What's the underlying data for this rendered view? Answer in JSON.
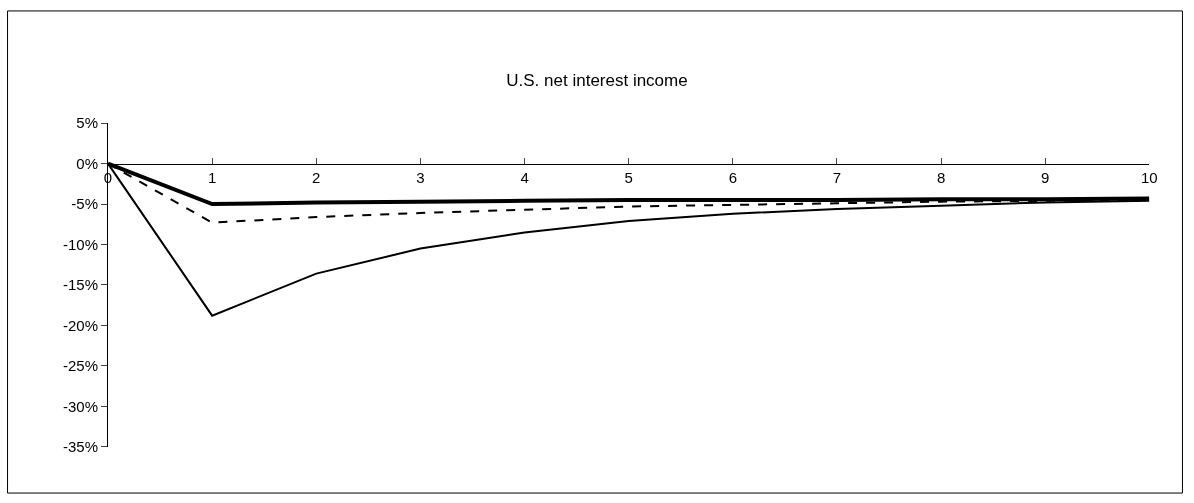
{
  "chart_data": {
    "type": "line",
    "title": "U.S. net interest income",
    "x": [
      0,
      1,
      2,
      3,
      4,
      5,
      6,
      7,
      8,
      9,
      10
    ],
    "series": [
      {
        "color": "#000000",
        "line_style": "solid",
        "values": [
          0,
          -5.0,
          -4.8,
          -4.7,
          -4.6,
          -4.5,
          -4.5,
          -4.5,
          -4.4,
          -4.4,
          -4.3
        ]
      },
      {
        "color": "#000000",
        "line_style": "dashed",
        "values": [
          0,
          -7.3,
          -6.6,
          -6.1,
          -5.7,
          -5.3,
          -5.1,
          -4.9,
          -4.7,
          -4.6,
          -4.5
        ]
      },
      {
        "color": "#000000",
        "line_style": "solid",
        "values": [
          0,
          -18.8,
          -13.6,
          -10.5,
          -8.5,
          -7.1,
          -6.2,
          -5.6,
          -5.2,
          -4.8,
          -4.6
        ]
      }
    ],
    "xlim": [
      0,
      10
    ],
    "xticks": [
      0,
      1,
      2,
      3,
      4,
      5,
      6,
      7,
      8,
      9,
      10
    ],
    "ylim": [
      -35,
      5
    ],
    "yticks": [
      {
        "value": 5,
        "label": "5%"
      },
      {
        "value": 0,
        "label": "0%"
      },
      {
        "value": -5,
        "label": "-5%"
      },
      {
        "value": -10,
        "label": "-10%"
      },
      {
        "value": -15,
        "label": "-15%"
      },
      {
        "value": -20,
        "label": "-20%"
      },
      {
        "value": -25,
        "label": "-25%"
      },
      {
        "value": -30,
        "label": "-30%"
      },
      {
        "value": -35,
        "label": "-35%"
      }
    ],
    "marker": "none"
  }
}
